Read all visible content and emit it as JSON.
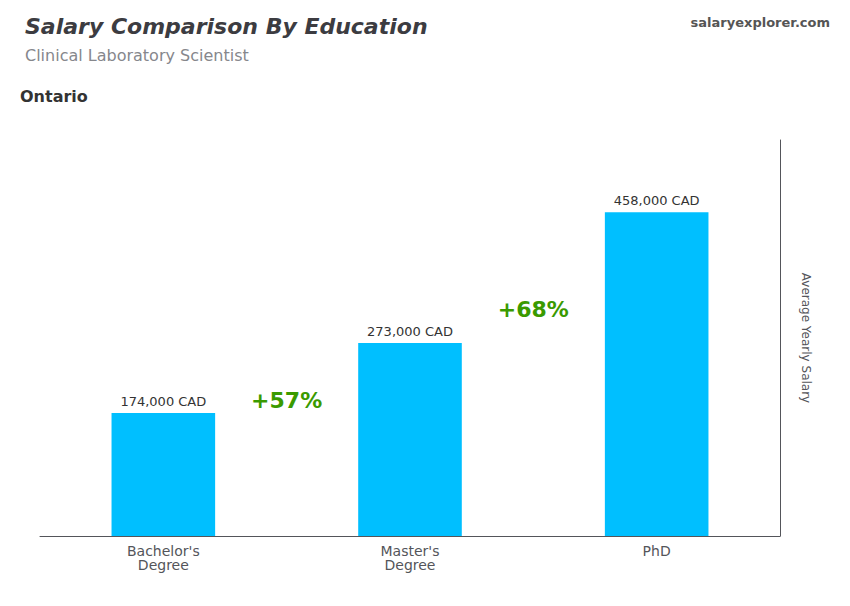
{
  "chart_data": {
    "type": "bar",
    "title": "Salary Comparison By Education",
    "subtitle": "Clinical Laboratory Scientist",
    "ylabel": "Average Yearly Salary",
    "annotations": [
      "Ontario",
      "salaryexplorer.com",
      "+57%",
      "+68%"
    ],
    "categories": [
      "Bachelor's\nDegree",
      "Master's\nDegree",
      "PhD"
    ],
    "values": [
      174000,
      273000,
      458000
    ],
    "value_labels": [
      "174,000 CAD",
      "273,000 CAD",
      "458,000 CAD"
    ],
    "data_labels": true,
    "color": "#00BFFF",
    "ylim": [
      0,
      560000
    ],
    "tick_labels": "x",
    "grid": false
  }
}
